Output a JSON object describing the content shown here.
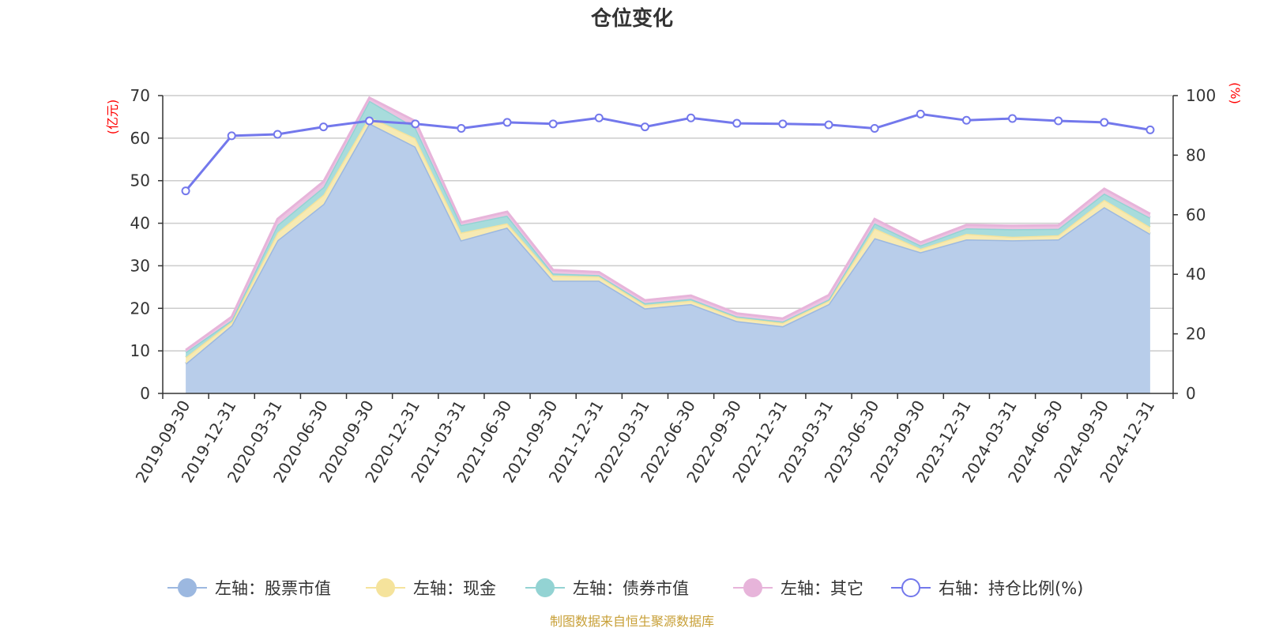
{
  "chart_data": {
    "type": "area",
    "title": "仓位变化",
    "categories": [
      "2019-09-30",
      "2019-12-31",
      "2020-03-31",
      "2020-06-30",
      "2020-09-30",
      "2020-12-31",
      "2021-03-31",
      "2021-06-30",
      "2021-09-30",
      "2021-12-31",
      "2022-03-31",
      "2022-06-30",
      "2022-09-30",
      "2022-12-31",
      "2023-03-31",
      "2023-06-30",
      "2023-09-30",
      "2023-12-31",
      "2024-03-31",
      "2024-06-30",
      "2024-09-30",
      "2024-12-31"
    ],
    "left_axis": {
      "unit": "(亿元)",
      "ylim": [
        0,
        70
      ],
      "ticks": [
        0,
        10,
        20,
        30,
        40,
        50,
        60,
        70
      ]
    },
    "right_axis": {
      "unit": "(%)",
      "ylim": [
        0,
        100
      ],
      "ticks": [
        0,
        20,
        40,
        60,
        80,
        100
      ]
    },
    "stacked_series": [
      {
        "name": "左轴：股票市值",
        "color": "#9cb8e0",
        "fill": "#b8cdea",
        "values": [
          7.0,
          16.0,
          36.0,
          44.5,
          63.5,
          58.0,
          36.0,
          39.0,
          26.5,
          26.5,
          20.0,
          21.0,
          17.0,
          15.8,
          21.0,
          36.5,
          33.2,
          36.2,
          36.0,
          36.2,
          43.8,
          37.5
        ]
      },
      {
        "name": "左轴：现金",
        "color": "#f5e39c",
        "fill": "#f7eab3",
        "values": [
          1.5,
          0.8,
          1.8,
          2.2,
          1.5,
          2.0,
          1.8,
          1.0,
          1.2,
          1.0,
          0.8,
          0.8,
          0.8,
          0.8,
          0.8,
          2.3,
          0.8,
          1.3,
          0.8,
          1.0,
          1.7,
          1.6
        ]
      },
      {
        "name": "左轴：债券市值",
        "color": "#93d3d3",
        "fill": "#a8dcdc",
        "values": [
          1.2,
          0.4,
          1.8,
          1.8,
          3.8,
          2.5,
          1.8,
          1.8,
          0.5,
          0.3,
          0.4,
          0.4,
          0.3,
          0.3,
          0.3,
          1.2,
          0.8,
          1.3,
          1.8,
          1.5,
          1.5,
          2.2
        ]
      },
      {
        "name": "左轴：其它",
        "color": "#e7b4da",
        "fill": "#ecc3e2",
        "values": [
          0.5,
          0.8,
          1.4,
          1.3,
          0.7,
          1.5,
          0.6,
          0.9,
          0.8,
          0.7,
          0.7,
          0.8,
          0.7,
          0.7,
          1.0,
          1.0,
          0.7,
          0.8,
          0.8,
          0.8,
          1.1,
          0.9
        ]
      }
    ],
    "line_series": {
      "name": "右轴：持仓比例(%)",
      "color": "#7378ec",
      "values": [
        68,
        86.5,
        87,
        89.5,
        91.5,
        90.5,
        89,
        91,
        90.5,
        92.5,
        89.5,
        92.5,
        90.7,
        90.5,
        90.2,
        89,
        93.8,
        91.7,
        92.3,
        91.5,
        91,
        88.5
      ]
    },
    "legend_position": "bottom",
    "grid": true,
    "source_note": "制图数据来自恒生聚源数据库"
  }
}
